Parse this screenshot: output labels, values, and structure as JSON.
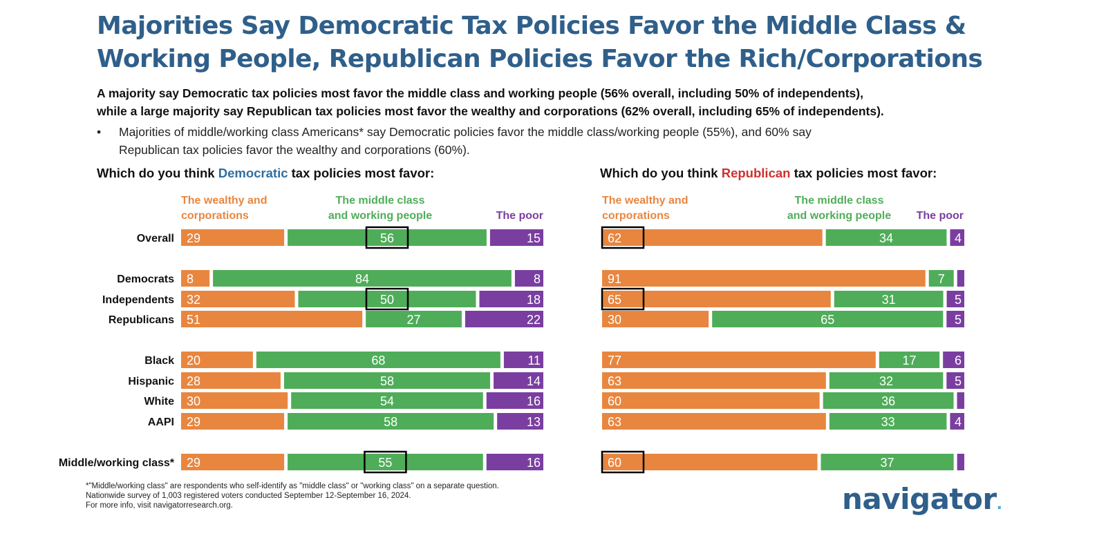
{
  "header": {
    "title_line1": "Majorities Say Democratic Tax Policies Favor the Middle Class &",
    "title_line2": "Working People, Republican Policies Favor the Rich/Corporations",
    "subtitle_line1": "A majority say Democratic tax policies most favor the middle class and working people (56% overall, including 50% of independents),",
    "subtitle_line2": "while a large majority say Republican tax policies most favor the wealthy and corporations (62% overall, including 65% of independents).",
    "bullet_marker": "•",
    "bullet_line1": "Majorities of middle/working class Americans* say Democratic policies favor the middle class/working people (55%), and 60% say",
    "bullet_line2": "Republican tax policies favor the wealthy and corporations (60%)."
  },
  "colors": {
    "wealthy": "#e8863f",
    "middle": "#4fad59",
    "poor": "#7a3ea0",
    "title": "#2f5f8a",
    "democratic": "#2f6ea4",
    "republican": "#d0302f"
  },
  "legend": {
    "wealthy_line1": "The wealthy and",
    "wealthy_line2": "corporations",
    "middle_line1": "The middle class",
    "middle_line2": "and working people",
    "poor": "The poor"
  },
  "chart_data": [
    {
      "type": "bar",
      "stacked": true,
      "orientation": "horizontal",
      "title_pre": "Which do you think ",
      "title_party": "Democratic",
      "title_post": " tax policies most favor:",
      "categories": [
        "Overall",
        "Democrats",
        "Independents",
        "Republicans",
        "Black",
        "Hispanic",
        "White",
        "AAPI",
        "Middle/working class*"
      ],
      "series": [
        {
          "name": "The wealthy and corporations",
          "color": "#e8863f",
          "values": [
            29,
            8,
            32,
            51,
            20,
            28,
            30,
            29,
            29
          ]
        },
        {
          "name": "The middle class and working people",
          "color": "#4fad59",
          "values": [
            56,
            84,
            50,
            27,
            68,
            58,
            54,
            58,
            55
          ]
        },
        {
          "name": "The poor",
          "color": "#7a3ea0",
          "values": [
            15,
            8,
            18,
            22,
            11,
            14,
            16,
            13,
            16
          ]
        }
      ],
      "highlighted": [
        {
          "category": "Overall",
          "series": "The middle class and working people"
        },
        {
          "category": "Independents",
          "series": "The middle class and working people"
        },
        {
          "category": "Middle/working class*",
          "series": "The middle class and working people"
        }
      ]
    },
    {
      "type": "bar",
      "stacked": true,
      "orientation": "horizontal",
      "title_pre": "Which do you think ",
      "title_party": "Republican",
      "title_post": " tax policies most favor:",
      "categories": [
        "Overall",
        "Democrats",
        "Independents",
        "Republicans",
        "Black",
        "Hispanic",
        "White",
        "AAPI",
        "Middle/working class*"
      ],
      "series": [
        {
          "name": "The wealthy and corporations",
          "color": "#e8863f",
          "values": [
            62,
            91,
            65,
            30,
            77,
            63,
            60,
            63,
            60
          ]
        },
        {
          "name": "The middle class and working people",
          "color": "#4fad59",
          "values": [
            34,
            7,
            31,
            65,
            17,
            32,
            36,
            33,
            37
          ]
        },
        {
          "name": "The poor",
          "color": "#7a3ea0",
          "values": [
            4,
            2,
            5,
            5,
            6,
            5,
            2,
            4,
            2
          ]
        }
      ],
      "value_labels_hidden": [
        {
          "category": "Democrats",
          "series": "The poor"
        },
        {
          "category": "White",
          "series": "The poor"
        },
        {
          "category": "Middle/working class*",
          "series": "The poor"
        }
      ],
      "highlighted": [
        {
          "category": "Overall",
          "series": "The wealthy and corporations"
        },
        {
          "category": "Independents",
          "series": "The wealthy and corporations"
        },
        {
          "category": "Middle/working class*",
          "series": "The wealthy and corporations"
        }
      ]
    }
  ],
  "footnote": {
    "line1": "*\"Middle/working class\" are respondents who self-identify as \"middle class\" or \"working class\" on a separate question.",
    "line2": "Nationwide survey of 1,003 registered voters conducted September 12-September 16, 2024.",
    "line3": "For more info, visit navigatorresearch.org."
  },
  "logo": {
    "text": "navigator",
    "mark": "."
  }
}
